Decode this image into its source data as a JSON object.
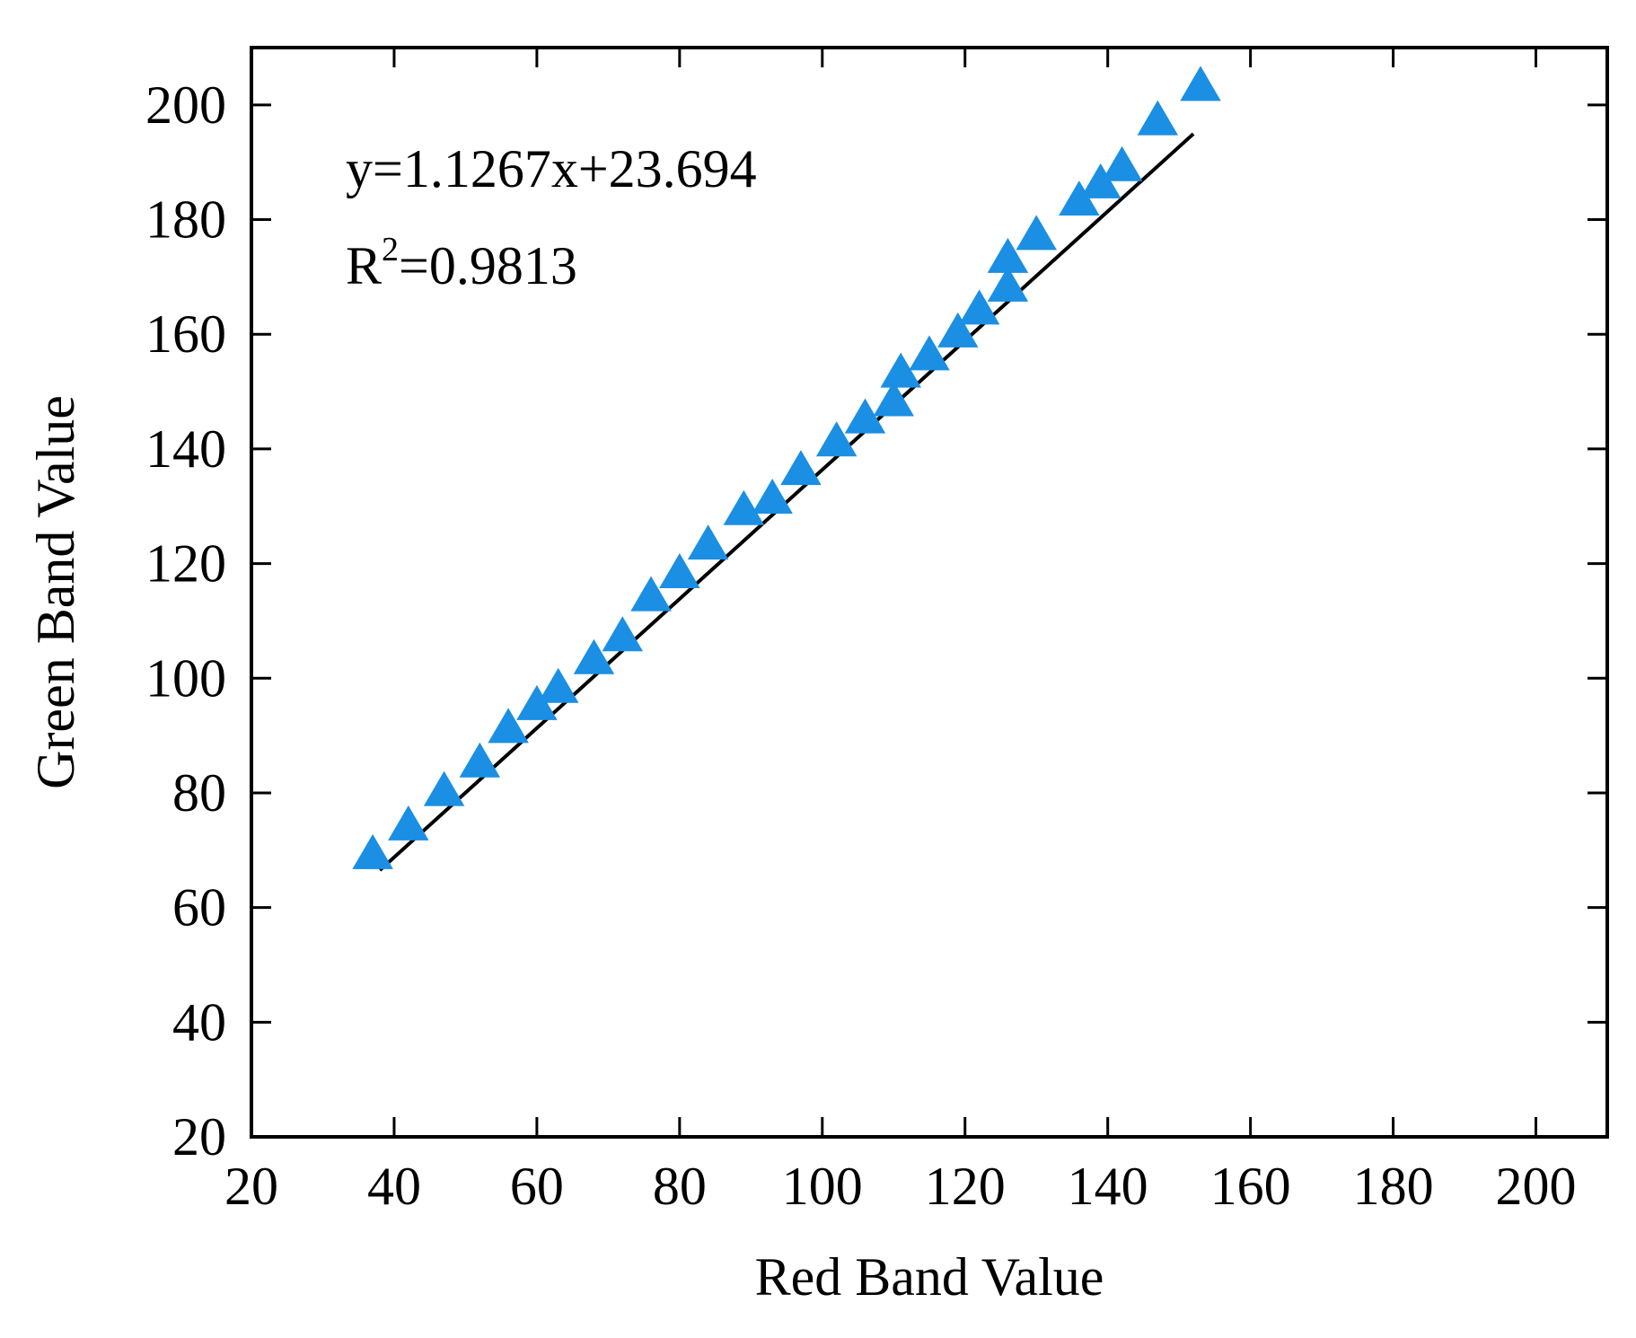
{
  "chart_data": {
    "type": "scatter",
    "xlabel": "Red Band Value",
    "ylabel": "Green Band Value",
    "xlim": [
      20,
      210
    ],
    "ylim": [
      20,
      210
    ],
    "x_ticks": [
      20,
      40,
      60,
      80,
      100,
      120,
      140,
      160,
      180,
      200
    ],
    "y_ticks": [
      20,
      40,
      60,
      80,
      100,
      120,
      140,
      160,
      180,
      200
    ],
    "grid": false,
    "marker": "triangle",
    "marker_color": "#1a8fe3",
    "line_color": "#000000",
    "series": [
      {
        "points": [
          {
            "x": 37,
            "y": 69
          },
          {
            "x": 42,
            "y": 74
          },
          {
            "x": 47,
            "y": 80
          },
          {
            "x": 52,
            "y": 85
          },
          {
            "x": 56,
            "y": 91
          },
          {
            "x": 60,
            "y": 95
          },
          {
            "x": 63,
            "y": 98
          },
          {
            "x": 68,
            "y": 103
          },
          {
            "x": 72,
            "y": 107
          },
          {
            "x": 76,
            "y": 114
          },
          {
            "x": 80,
            "y": 118
          },
          {
            "x": 84,
            "y": 123
          },
          {
            "x": 89,
            "y": 129
          },
          {
            "x": 93,
            "y": 131
          },
          {
            "x": 97,
            "y": 136
          },
          {
            "x": 102,
            "y": 141
          },
          {
            "x": 106,
            "y": 145
          },
          {
            "x": 110,
            "y": 148
          },
          {
            "x": 111,
            "y": 153
          },
          {
            "x": 115,
            "y": 156
          },
          {
            "x": 119,
            "y": 160
          },
          {
            "x": 122,
            "y": 164
          },
          {
            "x": 126,
            "y": 168
          },
          {
            "x": 126,
            "y": 173
          },
          {
            "x": 130,
            "y": 177
          },
          {
            "x": 136,
            "y": 183
          },
          {
            "x": 139,
            "y": 186
          },
          {
            "x": 142,
            "y": 189
          },
          {
            "x": 147,
            "y": 197
          },
          {
            "x": 153,
            "y": 203
          }
        ]
      }
    ],
    "fit": {
      "slope": 1.1267,
      "intercept": 23.694,
      "x_range": [
        38,
        152
      ]
    },
    "annotations": {
      "equation": "y=1.1267x+23.694",
      "r2_prefix": "R",
      "r2_superscript": "2",
      "r2_value": "=0.9813"
    }
  }
}
